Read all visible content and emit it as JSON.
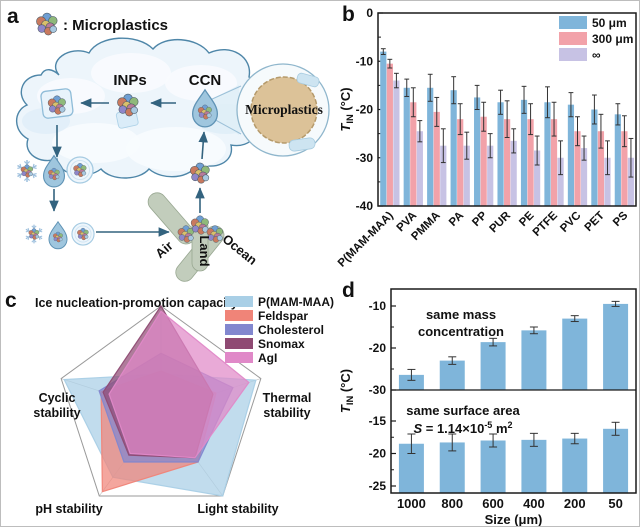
{
  "panels": {
    "a": "a",
    "b": "b",
    "c": "c",
    "d": "d"
  },
  "panel_a": {
    "legend_label": ": Microplastics",
    "inps_label": "INPs",
    "ccn_label": "CCN",
    "microplastics_label": "Microplastics",
    "air_label": "Air",
    "land_label": "Land",
    "ocean_label": "Ocean"
  },
  "chart_data": [
    {
      "id": "b",
      "type": "bar",
      "ylabel": "T_IN (°C)",
      "ylabel_parts": {
        "symbol": "T",
        "subscript": "IN",
        "unit": " (°C)"
      },
      "ylim": [
        -40,
        0
      ],
      "yticks": [
        0,
        -10,
        -20,
        -30,
        -40
      ],
      "grid": false,
      "legend_position": "top-right",
      "categories": [
        "P(MAM-MAA)",
        "PVA",
        "PMMA",
        "PA",
        "PP",
        "PUR",
        "PE",
        "PTFE",
        "PVC",
        "PET",
        "PS"
      ],
      "series": [
        {
          "name": "50 μm",
          "color": "#7fb5da",
          "values": [
            -8,
            -15.5,
            -15.5,
            -16,
            -17.5,
            -18.5,
            -18,
            -18.5,
            -19,
            -20,
            -21
          ],
          "errors": [
            0.6,
            1.8,
            2.8,
            2.8,
            2.5,
            2.5,
            2.8,
            3.2,
            2.5,
            3,
            2.2
          ]
        },
        {
          "name": "300 μm",
          "color": "#f2a2a9",
          "values": [
            -10.5,
            -18.5,
            -20.5,
            -22,
            -21.5,
            -22,
            -22,
            -22,
            -24.5,
            -24.5,
            -24.5
          ],
          "errors": [
            0.9,
            3,
            3,
            3.2,
            3,
            3.8,
            3.2,
            3.5,
            3,
            3.5,
            3.2
          ]
        },
        {
          "name": "∞",
          "color": "#c7c2e4",
          "values": [
            -14,
            -24.5,
            -27.5,
            -27.5,
            -27.5,
            -26.5,
            -28.5,
            -30,
            -28,
            -30,
            -30
          ],
          "errors": [
            1.5,
            2.2,
            3.5,
            2.8,
            2.5,
            2.5,
            3,
            3.5,
            2.5,
            3.5,
            4
          ]
        }
      ]
    },
    {
      "id": "c",
      "type": "radar",
      "title": "Ice nucleation-promotion capacity",
      "axes": [
        "Ice nucleation-promotion capacity",
        "Thermal stability",
        "Light stability",
        "pH stability",
        "Cyclic stability"
      ],
      "axis_labels": {
        "thermal": [
          "Thermal",
          "stability"
        ],
        "cyclic": [
          "Cyclic",
          "stability"
        ],
        "ph": "pH stability",
        "light": "Light stability"
      },
      "scale": [
        0,
        1
      ],
      "legend_position": "top-right",
      "series": [
        {
          "name": "P(MAM-MAA)",
          "color": "#a9cfe6",
          "values": [
            0.35,
            0.95,
            1.0,
            0.78,
            0.97
          ]
        },
        {
          "name": "Feldspar",
          "color": "#f08478",
          "values": [
            0.38,
            0.55,
            0.6,
            0.95,
            0.6
          ]
        },
        {
          "name": "Cholesterol",
          "color": "#8287cf",
          "values": [
            0.55,
            0.72,
            0.6,
            0.6,
            0.62
          ]
        },
        {
          "name": "Snomax",
          "color": "#8f4a73",
          "values": [
            1.0,
            0.52,
            0.55,
            0.52,
            0.58
          ]
        },
        {
          "name": "AgI",
          "color": "#e089c8",
          "values": [
            0.95,
            0.88,
            0.55,
            0.5,
            0.52
          ]
        }
      ]
    },
    {
      "id": "d-top",
      "type": "bar",
      "annotation_lines": [
        "same mass",
        "concentration"
      ],
      "categories": [
        "1000",
        "800",
        "600",
        "400",
        "200",
        "50"
      ],
      "values": [
        -26.4,
        -23,
        -18.6,
        -15.8,
        -13,
        -9.5
      ],
      "errors": [
        1.3,
        0.9,
        0.9,
        0.8,
        0.7,
        0.6
      ],
      "yticks": [
        -10,
        -20,
        -30
      ],
      "ylim": [
        -30,
        -8
      ],
      "bar_color": "#7fb5da"
    },
    {
      "id": "d-bottom",
      "type": "bar",
      "annotation_lines": [
        "same surface area"
      ],
      "annotation_formula": {
        "symbol": "S",
        "body": " = 1.14×10",
        "exponent": "-5",
        "unit": " m",
        "unit_exponent": "2"
      },
      "categories": [
        "1000",
        "800",
        "600",
        "400",
        "200",
        "50"
      ],
      "values": [
        -18.5,
        -18.3,
        -18.0,
        -17.9,
        -17.7,
        -16.2
      ],
      "errors": [
        1.5,
        1.3,
        1.0,
        1.0,
        0.8,
        1.0
      ],
      "yticks": [
        -15,
        -20,
        -25
      ],
      "xlabel": "Size (μm)",
      "ylabel": "T_IN (°C)",
      "ylabel_parts": {
        "symbol": "T",
        "subscript": "IN",
        "unit": " (°C)"
      },
      "bar_color": "#7fb5da"
    }
  ]
}
